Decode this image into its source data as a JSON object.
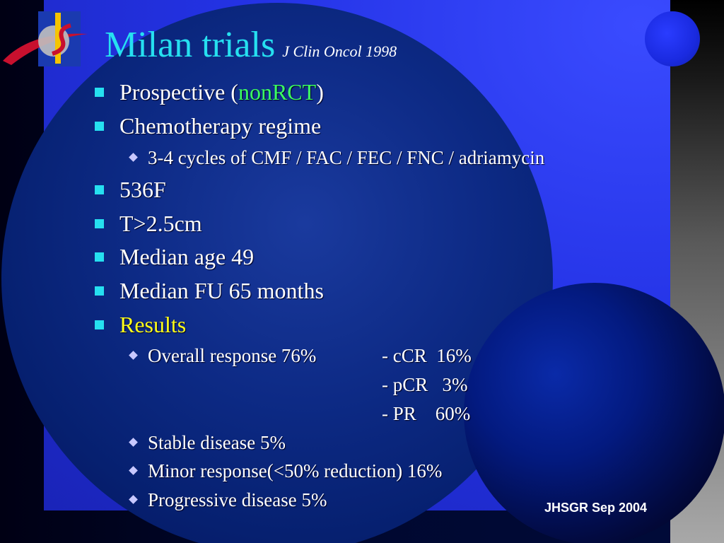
{
  "title": {
    "main": "Milan trials",
    "reference": "J Clin Oncol 1998"
  },
  "bullets": {
    "b1_prefix": "Prospective (",
    "b1_highlight": "nonRCT",
    "b1_suffix": ")",
    "b2": "Chemotherapy regime",
    "b2_sub": "3-4 cycles of CMF / FAC / FEC / FNC / adriamycin",
    "b3": "536F",
    "b4": "T>2.5cm",
    "b5": "Median age 49",
    "b6": "Median FU 65 months",
    "b7": "Results"
  },
  "results": {
    "overall": "Overall response 76%",
    "ccr": "- cCR  16%",
    "pcr": "- pCR   3%",
    "pr": "- PR    60%",
    "stable": "Stable disease 5%",
    "minor": "Minor response(<50% reduction) 16%",
    "progressive": "Progressive disease 5%"
  },
  "footer": "JHSGR Sep 2004",
  "colors": {
    "title": "#26e0f0",
    "highlight_green": "#3cff60",
    "highlight_yellow": "#ffff1a",
    "bullet_square": "#26e0f0"
  }
}
